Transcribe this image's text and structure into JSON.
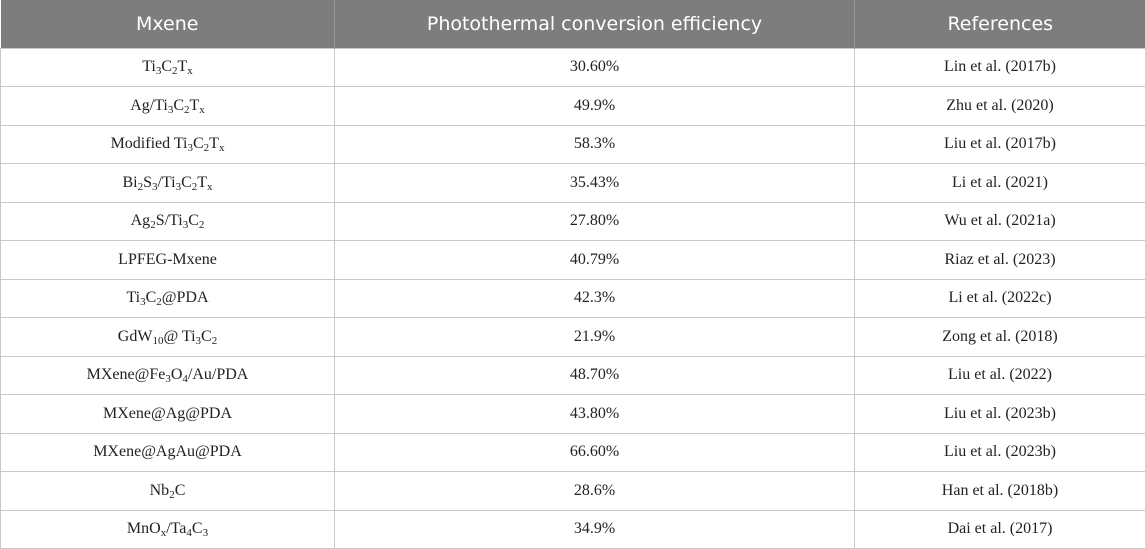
{
  "table": {
    "headers": [
      "Mxene",
      "Photothermal conversion efficiency",
      "References"
    ],
    "rows": [
      {
        "mxene": [
          [
            "Ti",
            ""
          ],
          [
            "3",
            "s"
          ],
          [
            "C",
            ""
          ],
          [
            "2",
            "s"
          ],
          [
            "T",
            ""
          ],
          [
            "x",
            "s"
          ]
        ],
        "efficiency": "30.60%",
        "reference": "Lin et al. (2017b)"
      },
      {
        "mxene": [
          [
            "Ag/Ti",
            ""
          ],
          [
            "3",
            "s"
          ],
          [
            "C",
            ""
          ],
          [
            "2",
            "s"
          ],
          [
            "T",
            ""
          ],
          [
            "x",
            "s"
          ]
        ],
        "efficiency": "49.9%",
        "reference": "Zhu et al. (2020)"
      },
      {
        "mxene": [
          [
            "Modified Ti",
            ""
          ],
          [
            "3",
            "s"
          ],
          [
            "C",
            ""
          ],
          [
            "2",
            "s"
          ],
          [
            "T",
            ""
          ],
          [
            "x",
            "s"
          ]
        ],
        "efficiency": "58.3%",
        "reference": "Liu et al. (2017b)"
      },
      {
        "mxene": [
          [
            "Bi",
            ""
          ],
          [
            "2",
            "s"
          ],
          [
            "S",
            ""
          ],
          [
            "3",
            "s"
          ],
          [
            "/Ti",
            ""
          ],
          [
            "3",
            "s"
          ],
          [
            "C",
            ""
          ],
          [
            "2",
            "s"
          ],
          [
            "T",
            ""
          ],
          [
            "x",
            "s"
          ]
        ],
        "efficiency": "35.43%",
        "reference": "Li et al. (2021)"
      },
      {
        "mxene": [
          [
            "Ag",
            ""
          ],
          [
            "2",
            "s"
          ],
          [
            "S/Ti",
            ""
          ],
          [
            "3",
            "s"
          ],
          [
            "C",
            ""
          ],
          [
            "2",
            "s"
          ]
        ],
        "efficiency": "27.80%",
        "reference": "Wu et al. (2021a)"
      },
      {
        "mxene": [
          [
            "LPFEG-Mxene",
            ""
          ]
        ],
        "efficiency": "40.79%",
        "reference": "Riaz et al. (2023)"
      },
      {
        "mxene": [
          [
            "Ti",
            ""
          ],
          [
            "3",
            "s"
          ],
          [
            "C",
            ""
          ],
          [
            "2",
            "s"
          ],
          [
            "@PDA",
            ""
          ]
        ],
        "efficiency": "42.3%",
        "reference": "Li et al. (2022c)"
      },
      {
        "mxene": [
          [
            "GdW",
            ""
          ],
          [
            "10",
            "s"
          ],
          [
            "@ Ti",
            ""
          ],
          [
            "3",
            "s"
          ],
          [
            "C",
            ""
          ],
          [
            "2",
            "s"
          ]
        ],
        "efficiency": "21.9%",
        "reference": "Zong et al. (2018)"
      },
      {
        "mxene": [
          [
            "MXene@Fe",
            ""
          ],
          [
            "3",
            "s"
          ],
          [
            "O",
            ""
          ],
          [
            "4",
            "s"
          ],
          [
            "/Au/PDA",
            ""
          ]
        ],
        "efficiency": "48.70%",
        "reference": "Liu et al. (2022)"
      },
      {
        "mxene": [
          [
            "MXene@Ag@PDA",
            ""
          ]
        ],
        "efficiency": "43.80%",
        "reference": "Liu et al. (2023b)"
      },
      {
        "mxene": [
          [
            "MXene@AgAu@PDA",
            ""
          ]
        ],
        "efficiency": "66.60%",
        "reference": "Liu et al. (2023b)"
      },
      {
        "mxene": [
          [
            "Nb",
            ""
          ],
          [
            "2",
            "s"
          ],
          [
            "C",
            ""
          ]
        ],
        "efficiency": "28.6%",
        "reference": "Han et al. (2018b)"
      },
      {
        "mxene": [
          [
            "MnO",
            ""
          ],
          [
            "x",
            "s"
          ],
          [
            "/Ta",
            ""
          ],
          [
            "4",
            "s"
          ],
          [
            "C",
            ""
          ],
          [
            "3",
            "s"
          ]
        ],
        "efficiency": "34.9%",
        "reference": "Dai et al. (2017)"
      }
    ]
  }
}
